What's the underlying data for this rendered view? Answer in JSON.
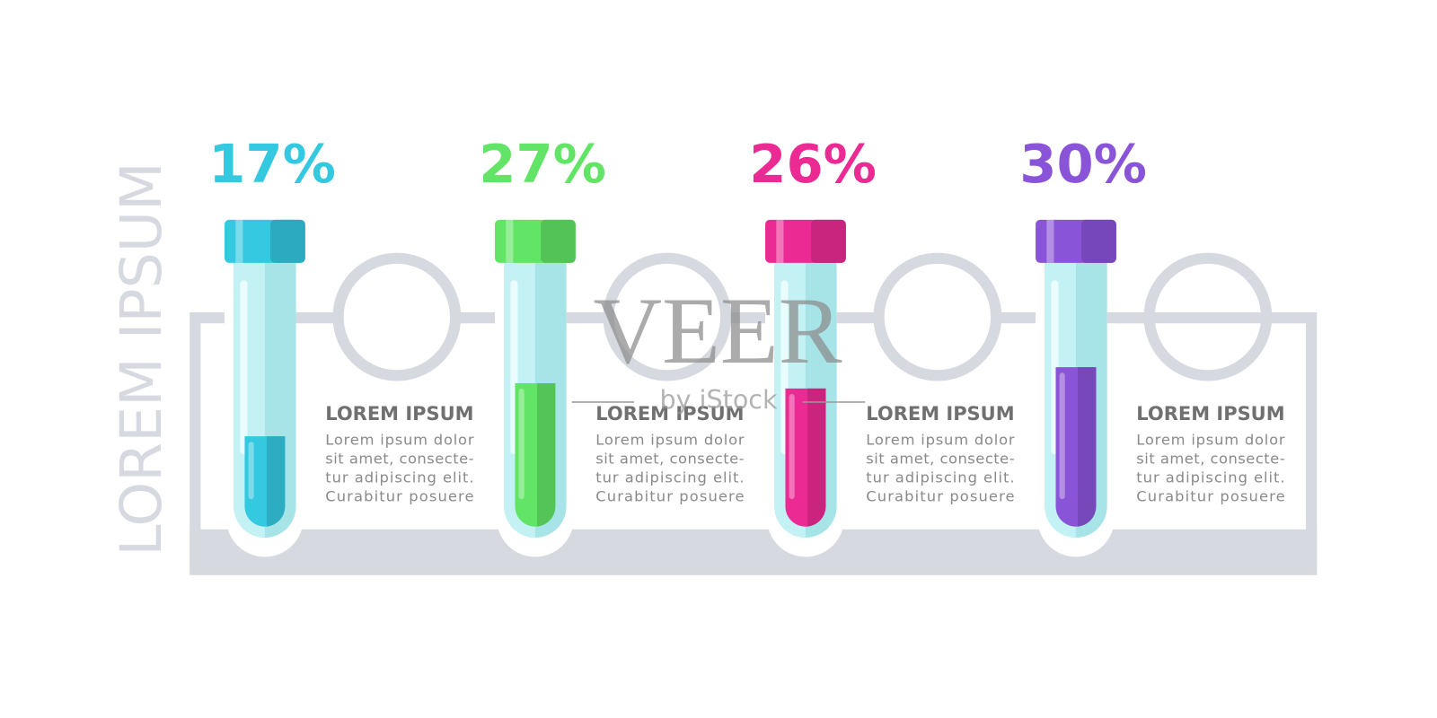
{
  "title": "LOREM IPSUM",
  "items": [
    {
      "value": 17,
      "value_label": "17%",
      "color": "#34c9e0",
      "heading": "LOREM IPSUM",
      "lines": [
        "Lorem ipsum dolor",
        "sit amet, consecte-",
        "tur adipiscing elit.",
        "Curabitur posuere"
      ]
    },
    {
      "value": 27,
      "value_label": "27%",
      "color": "#62e466",
      "heading": "LOREM IPSUM",
      "lines": [
        "Lorem ipsum dolor",
        "sit amet, consecte-",
        "tur adipiscing elit.",
        "Curabitur posuere"
      ]
    },
    {
      "value": 26,
      "value_label": "26%",
      "color": "#ec2a94",
      "heading": "LOREM IPSUM",
      "lines": [
        "Lorem ipsum dolor",
        "sit amet, consecte-",
        "tur adipiscing elit.",
        "Curabitur posuere"
      ]
    },
    {
      "value": 30,
      "value_label": "30%",
      "color": "#8a54d8",
      "heading": "LOREM IPSUM",
      "lines": [
        "Lorem ipsum dolor",
        "sit amet, consecte-",
        "tur adipiscing elit.",
        "Curabitur posuere"
      ]
    }
  ],
  "watermark": {
    "main": "VEER",
    "sub": "by iStock"
  }
}
